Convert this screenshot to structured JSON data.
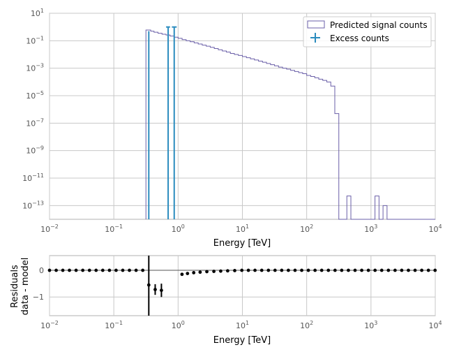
{
  "chart_data": [
    {
      "type": "step",
      "xlabel": "Energy [TeV]",
      "ylabel": "",
      "xscale": "log",
      "yscale": "log",
      "xlim": [
        0.01,
        10000
      ],
      "ylim": [
        1e-14,
        10
      ],
      "x_ticks": [
        {
          "value": 0.01,
          "base": "10",
          "exp": "−2"
        },
        {
          "value": 0.1,
          "base": "10",
          "exp": "−1"
        },
        {
          "value": 1,
          "base": "10",
          "exp": "0"
        },
        {
          "value": 10,
          "base": "10",
          "exp": "1"
        },
        {
          "value": 100,
          "base": "10",
          "exp": "2"
        },
        {
          "value": 1000,
          "base": "10",
          "exp": "3"
        },
        {
          "value": 10000,
          "base": "10",
          "exp": "4"
        }
      ],
      "y_ticks": [
        {
          "value": 1e-13,
          "base": "10",
          "exp": "−13"
        },
        {
          "value": 1e-11,
          "base": "10",
          "exp": "−11"
        },
        {
          "value": 1e-09,
          "base": "10",
          "exp": "−9"
        },
        {
          "value": 1e-07,
          "base": "10",
          "exp": "−7"
        },
        {
          "value": 1e-05,
          "base": "10",
          "exp": "−5"
        },
        {
          "value": 0.001,
          "base": "10",
          "exp": "−3"
        },
        {
          "value": 0.1,
          "base": "10",
          "exp": "−1"
        },
        {
          "value": 10,
          "base": "10",
          "exp": "1"
        }
      ],
      "grid": true,
      "legend_position": "top-right",
      "series": [
        {
          "name": "Predicted signal counts",
          "style": "step",
          "color": "#6a5fa8",
          "x_edges": [
            0.316,
            0.375,
            0.422,
            0.487,
            0.562,
            0.649,
            0.75,
            0.866,
            1.0,
            1.155,
            1.334,
            1.54,
            1.778,
            2.054,
            2.371,
            2.738,
            3.162,
            3.652,
            4.217,
            4.87,
            5.623,
            6.494,
            7.499,
            8.66,
            10.0,
            11.55,
            13.34,
            15.4,
            17.78,
            20.54,
            23.71,
            27.38,
            31.62,
            36.52,
            42.17,
            48.7,
            56.23,
            64.94,
            74.99,
            86.6,
            100.0,
            115.5,
            133.4,
            154.0,
            177.8,
            205.4,
            237.1,
            273.8,
            316.2,
            365.2,
            421.7,
            487.0,
            562.3,
            649.4,
            749.9,
            866.0,
            1000.0,
            1155.0,
            1334.0,
            1540.0,
            1778.0,
            2054.0,
            2371.0,
            2738.0,
            3162.0,
            3652.0,
            4217.0,
            4870.0,
            5623.0,
            6494.0,
            7499.0,
            8660.0,
            10000.0
          ],
          "values": [
            0.6,
            0.5,
            0.42,
            0.35,
            0.3,
            0.26,
            0.22,
            0.18,
            0.15,
            0.12,
            0.1,
            0.085,
            0.07,
            0.058,
            0.048,
            0.04,
            0.033,
            0.027,
            0.022,
            0.018,
            0.015,
            0.012,
            0.01,
            0.0085,
            0.007,
            0.0058,
            0.0048,
            0.004,
            0.0033,
            0.0027,
            0.0022,
            0.0018,
            0.0015,
            0.0012,
            0.001,
            0.00085,
            0.0007,
            0.00058,
            0.00048,
            0.0004,
            0.0003,
            0.00025,
            0.0002,
            0.00016,
            0.00013,
            0.0001,
            5e-05,
            5e-07,
            1e-14,
            1e-14,
            5e-13,
            1e-14,
            1e-14,
            1e-14,
            1e-14,
            1e-14,
            1e-14,
            5e-13,
            1e-14,
            1e-13,
            1e-14,
            1e-14,
            1e-14,
            1e-14,
            1e-14,
            1e-14,
            1e-14,
            1e-14,
            1e-14,
            1e-14,
            1e-14,
            1e-14
          ],
          "profile": [
            [
              0.3162,
              0.5
            ],
            [
              0.3162,
              0.5
            ],
            [
              0.3162,
              0.5
            ],
            [
              0.3162,
              0.5
            ],
            [
              0.3162,
              0.5
            ],
            [
              0.3162,
              0.5
            ],
            [
              0.3162,
              0.5
            ],
            [
              0.3162,
              0.5
            ],
            [
              0.3162,
              0.5
            ],
            [
              0.3162,
              0.5
            ],
            [
              0.3162,
              0.5
            ],
            [
              0.3162,
              0.5
            ],
            [
              0.3162,
              0.5
            ],
            [
              0.3162,
              0.5
            ],
            [
              0.3162,
              0.5
            ],
            [
              0.3162,
              0.5
            ],
            [
              0.3162,
              0.5
            ],
            [
              0.3162,
              0.5
            ],
            [
              0.3162,
              0.5
            ],
            [
              0.3162,
              0.5
            ],
            [
              0.3162,
              0.5
            ],
            [
              0.3162,
              0.5
            ],
            [
              0.3162,
              0.5
            ],
            [
              0.3162,
              0.5
            ],
            [
              0.3162,
              0.5
            ],
            [
              0.3162,
              0.5
            ],
            [
              0.3162,
              0.5
            ],
            [
              0.3162,
              0.5
            ],
            [
              0.3162,
              0.5
            ],
            [
              0.3162,
              0.5
            ],
            [
              0.3162,
              0.5
            ],
            [
              0.3162,
              0.5
            ],
            [
              0.3162,
              0.5
            ],
            [
              0.3162,
              0.5
            ],
            [
              0.3162,
              0.5
            ],
            [
              0.3162,
              0.5
            ],
            [
              0.3162,
              0.5
            ],
            [
              0.3162,
              0.5
            ],
            [
              0.3162,
              0.5
            ],
            [
              0.3162,
              0.5
            ],
            [
              0.3162,
              0.5
            ],
            [
              0.3162,
              0.5
            ],
            [
              0.3162,
              0.5
            ],
            [
              0.3162,
              0.5
            ],
            [
              0.3162,
              0.5
            ],
            [
              0.3162,
              0.5
            ],
            [
              0.3162,
              0.5
            ],
            [
              0.3162,
              0.5
            ],
            [
              0.3162,
              0.5
            ],
            [
              0.3162,
              0.5
            ],
            [
              0.3162,
              0.5
            ],
            [
              0.3162,
              0.5
            ],
            [
              0.3162,
              0.5
            ],
            [
              0.3162,
              0.5
            ],
            [
              0.3162,
              0.5
            ],
            [
              0.3162,
              0.5
            ],
            [
              0.3162,
              0.5
            ],
            [
              0.3162,
              0.5
            ],
            [
              0.3162,
              0.5
            ],
            [
              0.3162,
              0.5
            ],
            [
              0.3162,
              0.5
            ],
            [
              0.3162,
              0.5
            ],
            [
              0.3162,
              0.5
            ],
            [
              0.3162,
              0.5
            ],
            [
              0.3162,
              0.5
            ],
            [
              0.3162,
              0.5
            ],
            [
              0.3162,
              0.5
            ],
            [
              0.3162,
              0.5
            ],
            [
              0.3162,
              0.5
            ],
            [
              0.3162,
              0.5
            ],
            [
              0.3162,
              0.5
            ],
            [
              0.3162,
              0.5
            ]
          ]
        },
        {
          "name": "Excess counts",
          "style": "errorbar",
          "color": "#2b8cbe",
          "points": [
            {
              "x": 0.35,
              "y": 0.5,
              "ylow": 1e-14,
              "yhigh": 0.5,
              "xlow": 0.35,
              "xhigh": 0.35
            },
            {
              "x": 0.7,
              "y": 1.0,
              "ylow": 1e-14,
              "yhigh": 1.0,
              "xlow": 0.65,
              "xhigh": 0.75
            },
            {
              "x": 0.87,
              "y": 1.0,
              "ylow": 1e-14,
              "yhigh": 1.0,
              "xlow": 0.8,
              "xhigh": 0.95
            }
          ]
        }
      ]
    },
    {
      "type": "scatter",
      "xlabel": "Energy [TeV]",
      "ylabel_lines": [
        "Residuals",
        "data - model"
      ],
      "xscale": "log",
      "xlim": [
        0.01,
        10000
      ],
      "ylim": [
        -1.7,
        0.55
      ],
      "x_ticks": [
        {
          "value": 0.01,
          "base": "10",
          "exp": "−2"
        },
        {
          "value": 0.1,
          "base": "10",
          "exp": "−1"
        },
        {
          "value": 1,
          "base": "10",
          "exp": "0"
        },
        {
          "value": 10,
          "base": "10",
          "exp": "1"
        },
        {
          "value": 100,
          "base": "10",
          "exp": "2"
        },
        {
          "value": 1000,
          "base": "10",
          "exp": "3"
        },
        {
          "value": 10000,
          "base": "10",
          "exp": "4"
        }
      ],
      "y_ticks": [
        {
          "value": 0,
          "label": "0"
        },
        {
          "value": -1,
          "label": "−1"
        }
      ],
      "grid": true,
      "series": [
        {
          "name": "",
          "color": "#000000",
          "points": [
            {
              "x": 0.01,
              "y": 0.0,
              "yerr": 0.0
            },
            {
              "x": 0.0127,
              "y": 0.0,
              "yerr": 0.0
            },
            {
              "x": 0.0161,
              "y": 0.0,
              "yerr": 0.0
            },
            {
              "x": 0.0204,
              "y": 0.0,
              "yerr": 0.0
            },
            {
              "x": 0.0259,
              "y": 0.0,
              "yerr": 0.0
            },
            {
              "x": 0.0329,
              "y": 0.0,
              "yerr": 0.0
            },
            {
              "x": 0.0418,
              "y": 0.0,
              "yerr": 0.0
            },
            {
              "x": 0.053,
              "y": 0.0,
              "yerr": 0.0
            },
            {
              "x": 0.0673,
              "y": 0.0,
              "yerr": 0.0
            },
            {
              "x": 0.0855,
              "y": 0.0,
              "yerr": 0.0
            },
            {
              "x": 0.1085,
              "y": 0.0,
              "yerr": 0.0
            },
            {
              "x": 0.1378,
              "y": 0.0,
              "yerr": 0.0
            },
            {
              "x": 0.1749,
              "y": 0.0,
              "yerr": 0.0
            },
            {
              "x": 0.2221,
              "y": 0.0,
              "yerr": 0.0
            },
            {
              "x": 0.282,
              "y": 0.0,
              "yerr": 0.0
            },
            {
              "x": 0.35,
              "y": -0.55,
              "yerr": 1.7
            },
            {
              "x": 0.44,
              "y": -0.72,
              "yerr": 0.2
            },
            {
              "x": 0.55,
              "y": -0.75,
              "yerr": 0.25
            },
            {
              "x": 1.15,
              "y": -0.15,
              "yerr": 0.05
            },
            {
              "x": 1.4,
              "y": -0.12,
              "yerr": 0.03
            },
            {
              "x": 1.75,
              "y": -0.09,
              "yerr": 0.03
            },
            {
              "x": 2.2,
              "y": -0.07,
              "yerr": 0.02
            },
            {
              "x": 2.8,
              "y": -0.05,
              "yerr": 0.02
            },
            {
              "x": 3.6,
              "y": -0.04,
              "yerr": 0.02
            },
            {
              "x": 4.6,
              "y": -0.03,
              "yerr": 0.0
            },
            {
              "x": 5.9,
              "y": -0.02,
              "yerr": 0.0
            },
            {
              "x": 7.6,
              "y": -0.01,
              "yerr": 0.0
            },
            {
              "x": 9.8,
              "y": 0.0,
              "yerr": 0.0
            },
            {
              "x": 12.4,
              "y": 0.0,
              "yerr": 0.0
            },
            {
              "x": 15.7,
              "y": 0.0,
              "yerr": 0.0
            },
            {
              "x": 20.0,
              "y": 0.0,
              "yerr": 0.0
            },
            {
              "x": 25.4,
              "y": 0.0,
              "yerr": 0.0
            },
            {
              "x": 32.2,
              "y": 0.0,
              "yerr": 0.0
            },
            {
              "x": 40.9,
              "y": 0.0,
              "yerr": 0.0
            },
            {
              "x": 51.9,
              "y": 0.0,
              "yerr": 0.0
            },
            {
              "x": 65.9,
              "y": 0.0,
              "yerr": 0.0
            },
            {
              "x": 83.7,
              "y": 0.0,
              "yerr": 0.0
            },
            {
              "x": 106.2,
              "y": 0.0,
              "yerr": 0.0
            },
            {
              "x": 134.9,
              "y": 0.0,
              "yerr": 0.0
            },
            {
              "x": 171.3,
              "y": 0.0,
              "yerr": 0.0
            },
            {
              "x": 217.5,
              "y": 0.0,
              "yerr": 0.0
            },
            {
              "x": 276.2,
              "y": 0.0,
              "yerr": 0.0
            },
            {
              "x": 350.7,
              "y": 0.0,
              "yerr": 0.0
            },
            {
              "x": 445.3,
              "y": 0.0,
              "yerr": 0.0
            },
            {
              "x": 565.4,
              "y": 0.0,
              "yerr": 0.0
            },
            {
              "x": 718.0,
              "y": 0.0,
              "yerr": 0.0
            },
            {
              "x": 911.7,
              "y": 0.0,
              "yerr": 0.0
            },
            {
              "x": 1157.6,
              "y": 0.0,
              "yerr": 0.0
            },
            {
              "x": 1470.0,
              "y": 0.0,
              "yerr": 0.0
            },
            {
              "x": 1866.6,
              "y": 0.0,
              "yerr": 0.0
            },
            {
              "x": 2370.2,
              "y": 0.0,
              "yerr": 0.0
            },
            {
              "x": 3009.6,
              "y": 0.0,
              "yerr": 0.0
            },
            {
              "x": 3821.6,
              "y": 0.0,
              "yerr": 0.0
            },
            {
              "x": 4852.6,
              "y": 0.0,
              "yerr": 0.0
            },
            {
              "x": 6161.6,
              "y": 0.0,
              "yerr": 0.0
            },
            {
              "x": 7824.0,
              "y": 0.0,
              "yerr": 0.0
            },
            {
              "x": 9934.9,
              "y": 0.0,
              "yerr": 0.0
            }
          ]
        }
      ]
    }
  ]
}
